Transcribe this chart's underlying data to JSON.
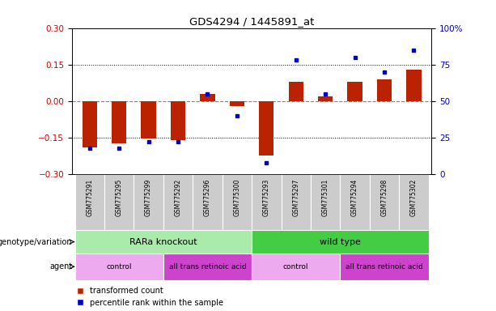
{
  "title": "GDS4294 / 1445891_at",
  "samples": [
    "GSM775291",
    "GSM775295",
    "GSM775299",
    "GSM775292",
    "GSM775296",
    "GSM775300",
    "GSM775293",
    "GSM775297",
    "GSM775301",
    "GSM775294",
    "GSM775298",
    "GSM775302"
  ],
  "bar_values": [
    -0.19,
    -0.175,
    -0.155,
    -0.16,
    0.03,
    -0.02,
    -0.225,
    0.08,
    0.02,
    0.08,
    0.09,
    0.13
  ],
  "scatter_values": [
    18,
    18,
    22,
    22,
    55,
    40,
    8,
    78,
    55,
    80,
    70,
    85
  ],
  "bar_color": "#bb2200",
  "scatter_color": "#0000cc",
  "ylim_left": [
    -0.3,
    0.3
  ],
  "ylim_right": [
    0,
    100
  ],
  "yticks_left": [
    -0.3,
    -0.15,
    0.0,
    0.15,
    0.3
  ],
  "yticks_right": [
    0,
    25,
    50,
    75,
    100
  ],
  "ytick_labels_right": [
    "0",
    "25",
    "50",
    "75",
    "100%"
  ],
  "hlines": [
    0.15,
    0.0,
    -0.15
  ],
  "genotype_groups": [
    {
      "label": "RARa knockout",
      "start": 0,
      "end": 6,
      "color": "#aaeaaa"
    },
    {
      "label": "wild type",
      "start": 6,
      "end": 12,
      "color": "#44cc44"
    }
  ],
  "agent_groups": [
    {
      "label": "control",
      "start": 0,
      "end": 3,
      "color": "#eeaaee"
    },
    {
      "label": "all trans retinoic acid",
      "start": 3,
      "end": 6,
      "color": "#cc44cc"
    },
    {
      "label": "control",
      "start": 6,
      "end": 9,
      "color": "#eeaaee"
    },
    {
      "label": "all trans retinoic acid",
      "start": 9,
      "end": 12,
      "color": "#cc44cc"
    }
  ],
  "legend_bar_label": "transformed count",
  "legend_scatter_label": "percentile rank within the sample",
  "genotype_row_label": "genotype/variation",
  "agent_row_label": "agent",
  "background_color": "#ffffff",
  "xlabels_bg": "#cccccc",
  "bar_width": 0.5
}
